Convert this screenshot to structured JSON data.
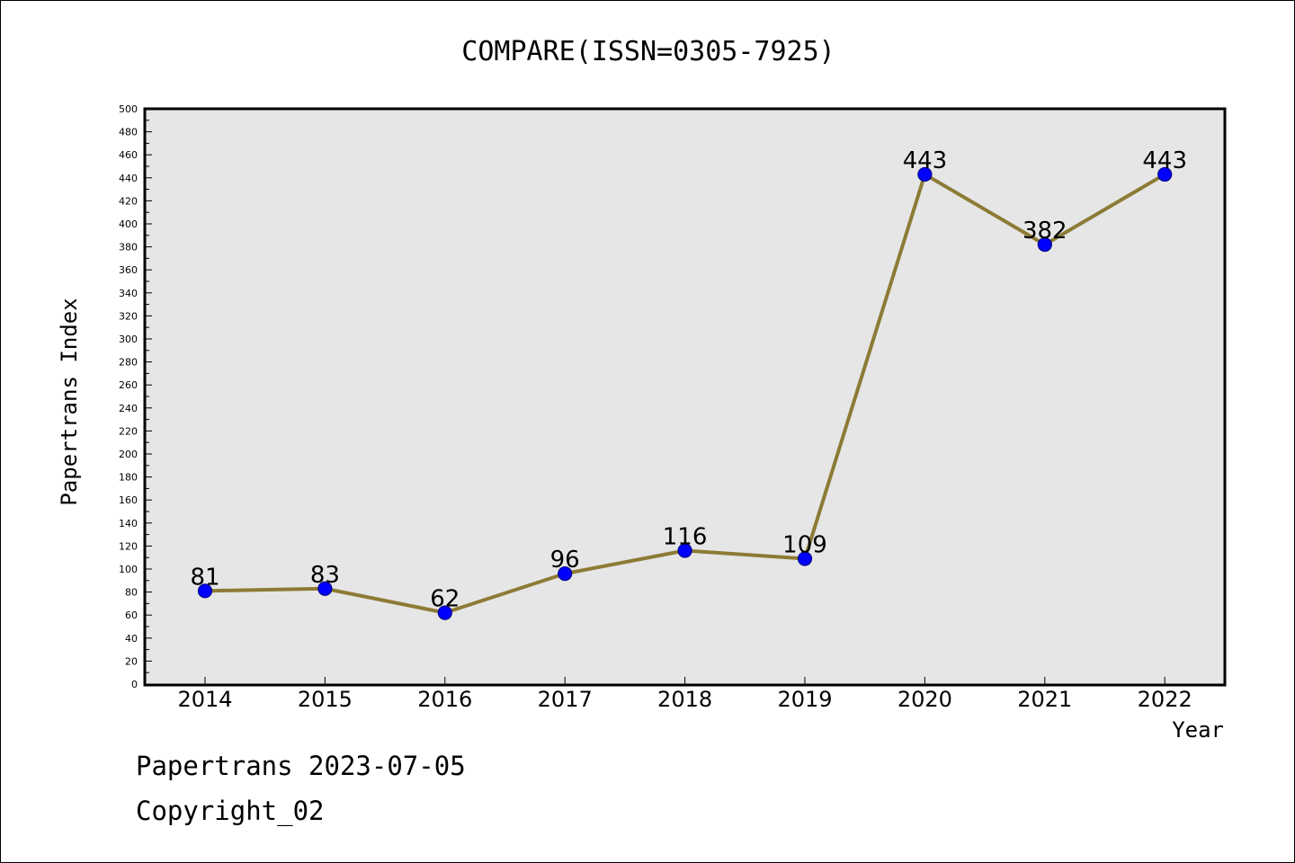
{
  "chart_data": {
    "type": "line",
    "title": "COMPARE(ISSN=0305-7925)",
    "xlabel": "Year",
    "ylabel": "Papertrans Index",
    "categories": [
      "2014",
      "2015",
      "2016",
      "2017",
      "2018",
      "2019",
      "2020",
      "2021",
      "2022"
    ],
    "series": [
      {
        "values": [
          81,
          83,
          62,
          96,
          116,
          109,
          443,
          382,
          443
        ]
      }
    ],
    "ylim": [
      0,
      500
    ],
    "yticks": [
      0,
      20,
      40,
      60,
      80,
      100,
      120,
      140,
      160,
      180,
      200,
      220,
      240,
      260,
      280,
      300,
      320,
      340,
      360,
      380,
      400,
      420,
      440,
      460,
      480,
      500
    ],
    "grid": false,
    "legend": "none",
    "colors": {
      "plot_background": "#e6e6e6",
      "line": "#8c7b35",
      "marker_fill": "#0000ff",
      "marker_stroke": "#00008b"
    }
  },
  "footer": {
    "date_line": "Papertrans 2023-07-05",
    "copyright_line": "Copyright_02"
  }
}
